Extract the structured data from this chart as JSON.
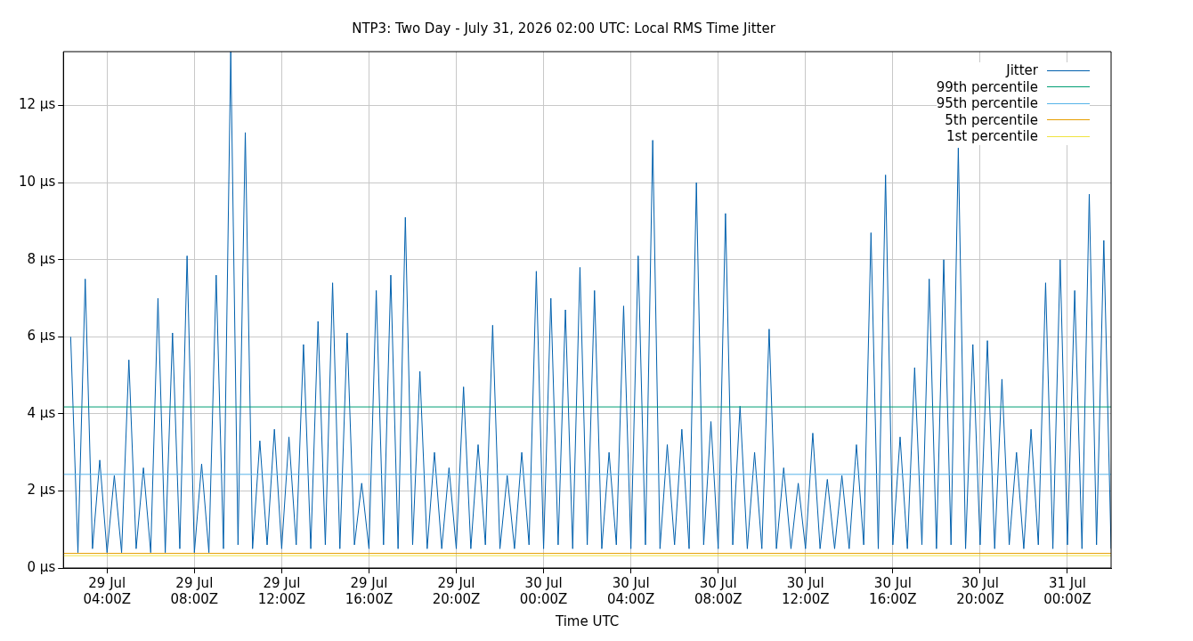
{
  "chart_data": {
    "type": "line",
    "title": "NTP3: Two Day - July 31, 2026 02:00 UTC: Local RMS Time Jitter",
    "xlabel": "Time UTC",
    "xlim": [
      "2026-07-29T02:00",
      "2026-07-31T02:00"
    ],
    "xticks": [
      {
        "value": "2026-07-29T04:00",
        "label": "29 Jul\n04:00Z"
      },
      {
        "value": "2026-07-29T08:00",
        "label": "29 Jul\n08:00Z"
      },
      {
        "value": "2026-07-29T12:00",
        "label": "29 Jul\n12:00Z"
      },
      {
        "value": "2026-07-29T16:00",
        "label": "29 Jul\n16:00Z"
      },
      {
        "value": "2026-07-29T20:00",
        "label": "29 Jul\n20:00Z"
      },
      {
        "value": "2026-07-30T00:00",
        "label": "30 Jul\n00:00Z"
      },
      {
        "value": "2026-07-30T04:00",
        "label": "30 Jul\n04:00Z"
      },
      {
        "value": "2026-07-30T08:00",
        "label": "30 Jul\n08:00Z"
      },
      {
        "value": "2026-07-30T12:00",
        "label": "30 Jul\n12:00Z"
      },
      {
        "value": "2026-07-30T16:00",
        "label": "30 Jul\n16:00Z"
      },
      {
        "value": "2026-07-30T20:00",
        "label": "30 Jul\n20:00Z"
      },
      {
        "value": "2026-07-31T00:00",
        "label": "31 Jul\n00:00Z"
      }
    ],
    "ylim": [
      0,
      13.4
    ],
    "yticks": [
      {
        "value": 0,
        "label": "0 µs"
      },
      {
        "value": 2,
        "label": "2 µs"
      },
      {
        "value": 4,
        "label": "4 µs"
      },
      {
        "value": 6,
        "label": "6 µs"
      },
      {
        "value": 8,
        "label": "8 µs"
      },
      {
        "value": 10,
        "label": "10 µs"
      },
      {
        "value": 12,
        "label": "12 µs"
      }
    ],
    "grid": true,
    "legend": "top right",
    "marker": "none",
    "series": [
      {
        "name": "Jitter",
        "color": "#0060ad",
        "x": [
          "2026-07-29T02:20",
          "2026-07-29T02:40",
          "2026-07-29T03:00",
          "2026-07-29T03:20",
          "2026-07-29T03:40",
          "2026-07-29T04:00",
          "2026-07-29T04:20",
          "2026-07-29T04:40",
          "2026-07-29T05:00",
          "2026-07-29T05:20",
          "2026-07-29T05:40",
          "2026-07-29T06:00",
          "2026-07-29T06:20",
          "2026-07-29T06:40",
          "2026-07-29T07:00",
          "2026-07-29T07:20",
          "2026-07-29T07:40",
          "2026-07-29T08:00",
          "2026-07-29T08:20",
          "2026-07-29T08:40",
          "2026-07-29T09:00",
          "2026-07-29T09:20",
          "2026-07-29T09:40",
          "2026-07-29T10:00",
          "2026-07-29T10:20",
          "2026-07-29T10:40",
          "2026-07-29T11:00",
          "2026-07-29T11:20",
          "2026-07-29T11:40",
          "2026-07-29T12:00",
          "2026-07-29T12:20",
          "2026-07-29T12:40",
          "2026-07-29T13:00",
          "2026-07-29T13:20",
          "2026-07-29T13:40",
          "2026-07-29T14:00",
          "2026-07-29T14:20",
          "2026-07-29T14:40",
          "2026-07-29T15:00",
          "2026-07-29T15:20",
          "2026-07-29T15:40",
          "2026-07-29T16:00",
          "2026-07-29T16:20",
          "2026-07-29T16:40",
          "2026-07-29T17:00",
          "2026-07-29T17:20",
          "2026-07-29T17:40",
          "2026-07-29T18:00",
          "2026-07-29T18:20",
          "2026-07-29T18:40",
          "2026-07-29T19:00",
          "2026-07-29T19:20",
          "2026-07-29T19:40",
          "2026-07-29T20:00",
          "2026-07-29T20:20",
          "2026-07-29T20:40",
          "2026-07-29T21:00",
          "2026-07-29T21:20",
          "2026-07-29T21:40",
          "2026-07-29T22:00",
          "2026-07-29T22:20",
          "2026-07-29T22:40",
          "2026-07-29T23:00",
          "2026-07-29T23:20",
          "2026-07-29T23:40",
          "2026-07-30T00:00",
          "2026-07-30T00:20",
          "2026-07-30T00:40",
          "2026-07-30T01:00",
          "2026-07-30T01:20",
          "2026-07-30T01:40",
          "2026-07-30T02:00",
          "2026-07-30T02:20",
          "2026-07-30T02:40",
          "2026-07-30T03:00",
          "2026-07-30T03:20",
          "2026-07-30T03:40",
          "2026-07-30T04:00",
          "2026-07-30T04:20",
          "2026-07-30T04:40",
          "2026-07-30T05:00",
          "2026-07-30T05:20",
          "2026-07-30T05:40",
          "2026-07-30T06:00",
          "2026-07-30T06:20",
          "2026-07-30T06:40",
          "2026-07-30T07:00",
          "2026-07-30T07:20",
          "2026-07-30T07:40",
          "2026-07-30T08:00",
          "2026-07-30T08:20",
          "2026-07-30T08:40",
          "2026-07-30T09:00",
          "2026-07-30T09:20",
          "2026-07-30T09:40",
          "2026-07-30T10:00",
          "2026-07-30T10:20",
          "2026-07-30T10:40",
          "2026-07-30T11:00",
          "2026-07-30T11:20",
          "2026-07-30T11:40",
          "2026-07-30T12:00",
          "2026-07-30T12:20",
          "2026-07-30T12:40",
          "2026-07-30T13:00",
          "2026-07-30T13:20",
          "2026-07-30T13:40",
          "2026-07-30T14:00",
          "2026-07-30T14:20",
          "2026-07-30T14:40",
          "2026-07-30T15:00",
          "2026-07-30T15:20",
          "2026-07-30T15:40",
          "2026-07-30T16:00",
          "2026-07-30T16:20",
          "2026-07-30T16:40",
          "2026-07-30T17:00",
          "2026-07-30T17:20",
          "2026-07-30T17:40",
          "2026-07-30T18:00",
          "2026-07-30T18:20",
          "2026-07-30T18:40",
          "2026-07-30T19:00",
          "2026-07-30T19:20",
          "2026-07-30T19:40",
          "2026-07-30T20:00",
          "2026-07-30T20:20",
          "2026-07-30T20:40",
          "2026-07-30T21:00",
          "2026-07-30T21:20",
          "2026-07-30T21:40",
          "2026-07-30T22:00",
          "2026-07-30T22:20",
          "2026-07-30T22:40",
          "2026-07-30T23:00",
          "2026-07-30T23:20",
          "2026-07-30T23:40",
          "2026-07-31T00:00",
          "2026-07-31T00:20",
          "2026-07-31T00:40",
          "2026-07-31T01:00",
          "2026-07-31T01:20",
          "2026-07-31T01:40",
          "2026-07-31T02:00"
        ],
        "values": [
          6.0,
          0.4,
          7.5,
          0.5,
          2.8,
          0.4,
          2.4,
          0.4,
          5.4,
          0.5,
          2.6,
          0.4,
          7.0,
          0.4,
          6.1,
          0.5,
          8.1,
          0.4,
          2.7,
          0.4,
          7.6,
          0.5,
          13.4,
          0.6,
          11.3,
          0.5,
          3.3,
          0.6,
          3.6,
          0.5,
          3.4,
          0.6,
          5.8,
          0.5,
          6.4,
          0.6,
          7.4,
          0.5,
          6.1,
          0.6,
          2.2,
          0.5,
          7.2,
          0.6,
          7.6,
          0.5,
          9.1,
          0.6,
          5.1,
          0.5,
          3.0,
          0.5,
          2.6,
          0.5,
          4.7,
          0.5,
          3.2,
          0.6,
          6.3,
          0.5,
          2.4,
          0.5,
          3.0,
          0.6,
          7.7,
          0.5,
          7.0,
          0.6,
          6.7,
          0.5,
          7.8,
          0.6,
          7.2,
          0.5,
          3.0,
          0.6,
          6.8,
          0.5,
          8.1,
          0.6,
          11.1,
          0.5,
          3.2,
          0.6,
          3.6,
          0.5,
          10.0,
          0.6,
          3.8,
          0.5,
          9.2,
          0.6,
          4.2,
          0.5,
          3.0,
          0.5,
          6.2,
          0.5,
          2.6,
          0.5,
          2.2,
          0.5,
          3.5,
          0.5,
          2.3,
          0.5,
          2.4,
          0.5,
          3.2,
          0.6,
          8.7,
          0.5,
          10.2,
          0.6,
          3.4,
          0.5,
          5.2,
          0.6,
          7.5,
          0.5,
          8.0,
          0.6,
          10.9,
          0.5,
          5.8,
          0.6,
          5.9,
          0.5,
          4.9,
          0.6,
          3.0,
          0.5,
          3.6,
          0.6,
          7.4,
          0.5,
          8.0,
          0.6,
          7.2,
          0.5,
          9.7,
          0.6,
          8.5,
          0.5
        ]
      },
      {
        "name": "99th percentile",
        "color": "#009e73",
        "x": [
          "2026-07-29T02:00",
          "2026-07-31T02:00"
        ],
        "values": [
          4.18,
          4.18
        ]
      },
      {
        "name": "95th percentile",
        "color": "#56b4e9",
        "x": [
          "2026-07-29T02:00",
          "2026-07-31T02:00"
        ],
        "values": [
          2.43,
          2.43
        ]
      },
      {
        "name": "5th percentile",
        "color": "#e69f00",
        "x": [
          "2026-07-29T02:00",
          "2026-07-31T02:00"
        ],
        "values": [
          0.38,
          0.38
        ]
      },
      {
        "name": "1st percentile",
        "color": "#f0e442",
        "x": [
          "2026-07-29T02:00",
          "2026-07-31T02:00"
        ],
        "values": [
          0.32,
          0.32
        ]
      }
    ]
  }
}
